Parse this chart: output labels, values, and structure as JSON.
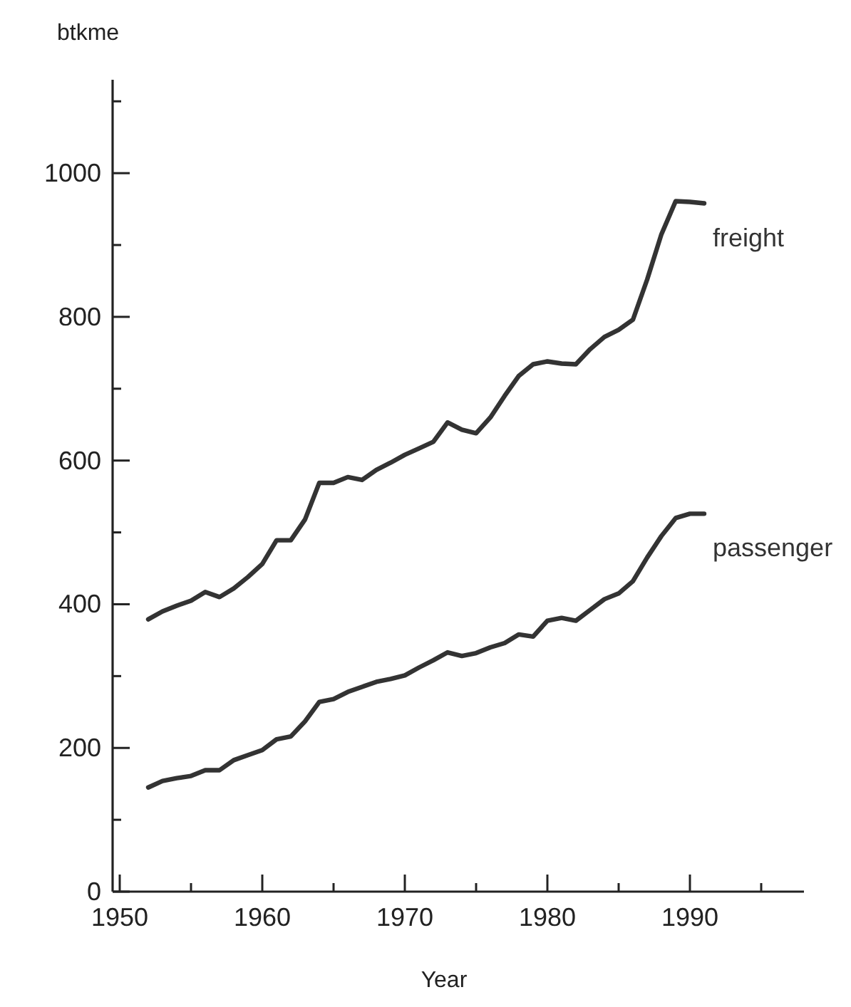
{
  "chart_data": {
    "type": "line",
    "xlabel": "Year",
    "ylabel": "btkme",
    "xlim": [
      1949.5,
      1998
    ],
    "ylim": [
      0,
      1130
    ],
    "xticks": [
      1950,
      {
        "value": 1955,
        "label": null
      },
      1960,
      {
        "value": 1965,
        "label": null
      },
      1970,
      {
        "value": 1975,
        "label": null
      },
      1980,
      {
        "value": 1985,
        "label": null
      },
      1990,
      {
        "value": 1995,
        "label": null
      }
    ],
    "yticks": [
      0,
      {
        "value": 100,
        "label": null
      },
      200,
      {
        "value": 300,
        "label": null
      },
      400,
      {
        "value": 500,
        "label": null
      },
      600,
      {
        "value": 700,
        "label": null
      },
      800,
      {
        "value": 900,
        "label": null
      },
      1000,
      {
        "value": 1100,
        "label": null
      }
    ],
    "grid": false,
    "legend": false,
    "marker": "none",
    "line_style": "solid",
    "series": [
      {
        "name": "freight",
        "color": "#333333",
        "x": [
          1952,
          1953,
          1954,
          1955,
          1956,
          1957,
          1958,
          1959,
          1960,
          1961,
          1962,
          1963,
          1964,
          1965,
          1966,
          1967,
          1968,
          1969,
          1970,
          1971,
          1972,
          1973,
          1974,
          1975,
          1976,
          1977,
          1978,
          1979,
          1980,
          1981,
          1982,
          1983,
          1984,
          1985,
          1986,
          1987,
          1988,
          1989,
          1990,
          1991
        ],
        "values": [
          379,
          390,
          398,
          405,
          417,
          410,
          422,
          438,
          456,
          489,
          489,
          518,
          569,
          569,
          577,
          573,
          587,
          597,
          608,
          617,
          626,
          653,
          643,
          638,
          660,
          690,
          718,
          734,
          738,
          735,
          734,
          755,
          772,
          782,
          796,
          852,
          915,
          961,
          960,
          958
        ]
      },
      {
        "name": "passenger",
        "color": "#333333",
        "x": [
          1952,
          1953,
          1954,
          1955,
          1956,
          1957,
          1958,
          1959,
          1960,
          1961,
          1962,
          1963,
          1964,
          1965,
          1966,
          1967,
          1968,
          1969,
          1970,
          1971,
          1972,
          1973,
          1974,
          1975,
          1976,
          1977,
          1978,
          1979,
          1980,
          1981,
          1982,
          1983,
          1984,
          1985,
          1986,
          1987,
          1988,
          1989,
          1990,
          1991
        ],
        "values": [
          145,
          154,
          158,
          161,
          169,
          169,
          183,
          190,
          197,
          212,
          216,
          237,
          264,
          268,
          278,
          285,
          292,
          296,
          301,
          312,
          322,
          333,
          328,
          332,
          340,
          346,
          358,
          355,
          377,
          381,
          377,
          392,
          407,
          415,
          432,
          465,
          495,
          520,
          526,
          526
        ]
      }
    ]
  }
}
